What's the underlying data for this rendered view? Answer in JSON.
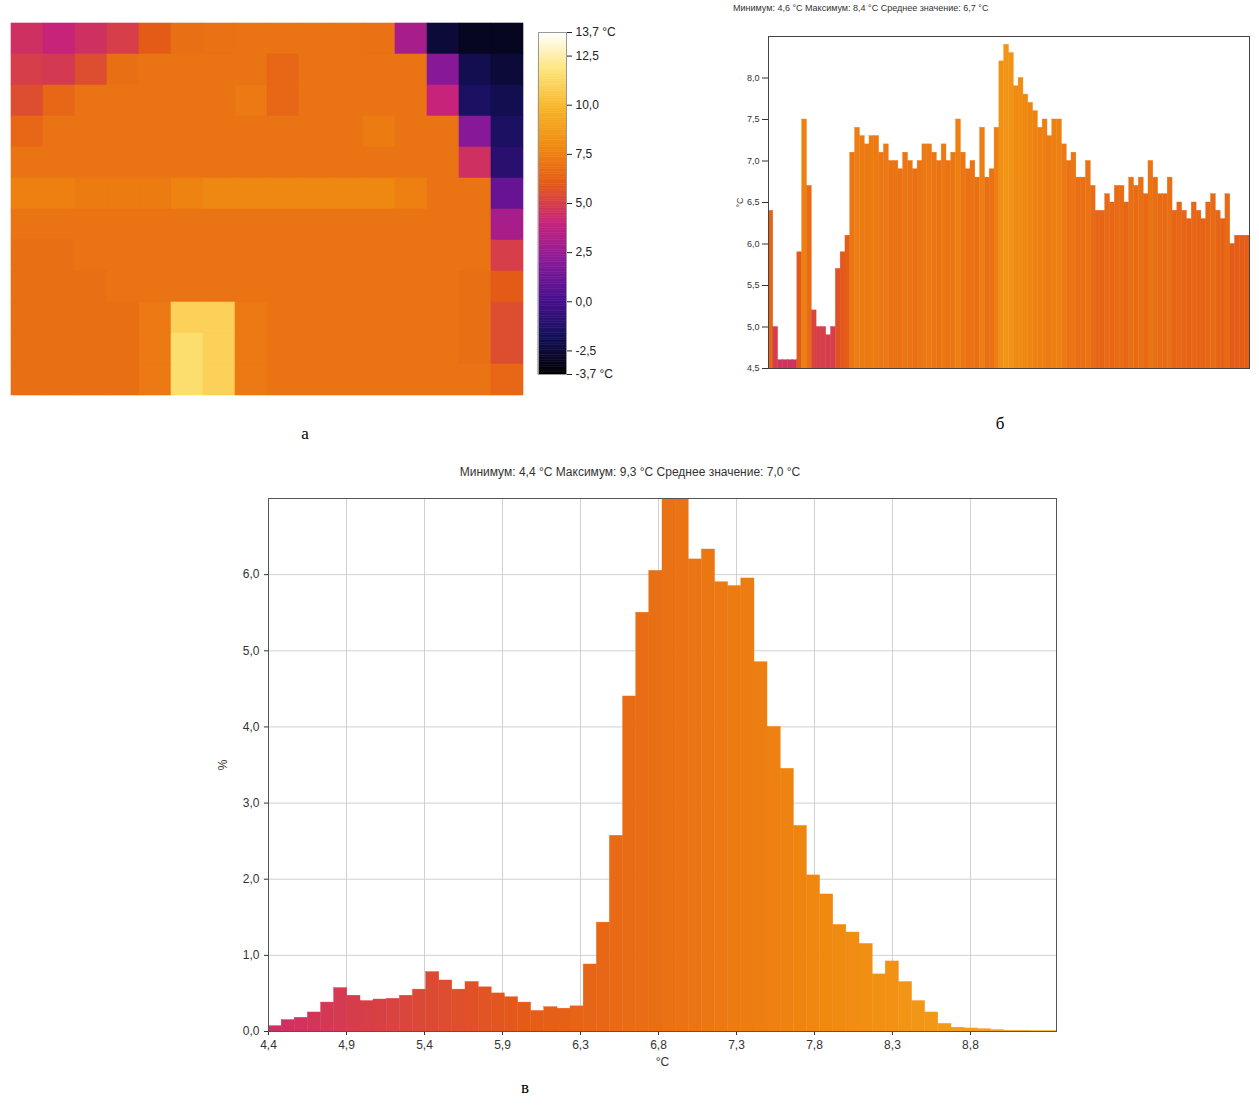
{
  "chart_data": [
    {
      "type": "heatmap",
      "caption": "а",
      "tick_labels": false,
      "cells": [
        [
          4.5,
          4,
          4.5,
          5,
          6,
          6.8,
          6.9,
          7,
          7,
          7,
          7,
          6.9,
          3,
          -2.5,
          -3,
          -3
        ],
        [
          5,
          4.8,
          5.5,
          6.8,
          7,
          7,
          7,
          7,
          6.5,
          7,
          7,
          7,
          7,
          2,
          -2,
          -2.5
        ],
        [
          5.5,
          6.5,
          7,
          7,
          7,
          7,
          7,
          7.2,
          6.5,
          7,
          7,
          7,
          7,
          4,
          -1.5,
          -2
        ],
        [
          6.5,
          7,
          7,
          7,
          7,
          7,
          7,
          7,
          7,
          7,
          7,
          7.3,
          7,
          7,
          2,
          -1.5
        ],
        [
          7,
          7,
          7,
          7,
          7,
          7,
          7,
          7,
          7,
          7,
          7,
          7,
          7,
          7,
          4.5,
          -1
        ],
        [
          7.5,
          7.5,
          7.3,
          7.3,
          7.3,
          7.6,
          7.8,
          7.8,
          7.8,
          7.8,
          7.8,
          7.8,
          7.5,
          7,
          7,
          1
        ],
        [
          7,
          7,
          7,
          7,
          7,
          7,
          7,
          7,
          7,
          7,
          7,
          7,
          7,
          7,
          7,
          3
        ],
        [
          6.8,
          6.8,
          7,
          7,
          7,
          7,
          7,
          7,
          7,
          7,
          7,
          7,
          7,
          7,
          7,
          5
        ],
        [
          6.8,
          6.8,
          6.8,
          7,
          7,
          7,
          7,
          7,
          7,
          7,
          7,
          7,
          7,
          7,
          6.8,
          6
        ],
        [
          6.8,
          6.8,
          6.8,
          6.8,
          7.2,
          11,
          11,
          7.2,
          7,
          7,
          7,
          7,
          7,
          7,
          6.8,
          5.5
        ],
        [
          6.8,
          6.8,
          6.8,
          6.8,
          7.2,
          11.5,
          11,
          7.2,
          7,
          7,
          7,
          7,
          7,
          7,
          6.8,
          5.5
        ],
        [
          6.8,
          6.8,
          6.8,
          6.8,
          7.2,
          11.5,
          11,
          7.2,
          7,
          7,
          7,
          7,
          7,
          7,
          7,
          6.5
        ]
      ],
      "colorbar": {
        "range": [
          -3.7,
          13.7
        ],
        "ticks": [
          {
            "value": -3.7,
            "label": "-3,7 °C"
          },
          {
            "value": -2.5,
            "label": "-2,5"
          },
          {
            "value": 0,
            "label": "0,0"
          },
          {
            "value": 2.5,
            "label": "2,5"
          },
          {
            "value": 5,
            "label": "5,0"
          },
          {
            "value": 7.5,
            "label": "7,5"
          },
          {
            "value": 10,
            "label": "10,0"
          },
          {
            "value": 12.5,
            "label": "12,5"
          },
          {
            "value": 13.7,
            "label": "13,7 °C"
          }
        ]
      }
    },
    {
      "type": "bar",
      "caption": "б",
      "title": "Минимум: 4,6 °C Максимум: 8,4 °C Среднее значение: 6,7 °C",
      "ylabel": "°C",
      "categories": [
        null,
        null,
        null,
        null,
        null,
        null,
        null,
        null,
        null,
        null,
        null,
        null,
        null,
        null,
        null,
        null,
        null,
        null,
        null,
        null,
        null,
        null,
        null,
        null,
        null,
        null,
        null,
        null,
        null,
        null,
        null,
        null,
        null,
        null,
        null,
        null,
        null,
        null,
        null,
        null,
        null,
        null,
        null,
        null,
        null,
        null,
        null,
        null,
        null,
        null,
        null,
        null,
        null,
        null,
        null,
        null,
        null,
        null,
        null,
        null,
        null,
        null,
        null,
        null,
        null,
        null,
        null,
        null,
        null,
        null,
        null,
        null,
        null,
        null,
        null,
        null,
        null,
        null,
        null,
        null,
        null,
        null,
        null,
        null,
        null,
        null,
        null,
        null,
        null,
        null,
        null,
        null,
        null,
        null,
        null,
        null,
        null,
        null,
        null,
        null
      ],
      "values": [
        6.4,
        5.0,
        4.6,
        4.6,
        4.6,
        4.6,
        5.9,
        7.5,
        6.7,
        5.2,
        5.0,
        5.0,
        4.9,
        5.0,
        5.7,
        5.9,
        6.1,
        7.1,
        7.4,
        7.3,
        7.2,
        7.3,
        7.3,
        7.1,
        7.2,
        7.0,
        7.0,
        6.9,
        7.1,
        7.0,
        6.9,
        7.0,
        7.2,
        7.2,
        7.1,
        7.0,
        7.2,
        7.0,
        7.1,
        7.5,
        7.1,
        6.9,
        7.0,
        6.8,
        7.4,
        6.8,
        6.9,
        7.4,
        8.2,
        8.4,
        8.3,
        7.9,
        8.0,
        7.8,
        7.7,
        7.6,
        7.4,
        7.5,
        7.3,
        7.5,
        7.5,
        7.2,
        7.0,
        7.1,
        6.8,
        6.8,
        7.0,
        6.7,
        6.4,
        6.4,
        6.6,
        6.5,
        6.7,
        6.7,
        6.5,
        6.8,
        6.7,
        6.8,
        6.6,
        7.0,
        6.8,
        6.6,
        6.6,
        6.8,
        6.4,
        6.5,
        6.4,
        6.3,
        6.5,
        6.4,
        6.3,
        6.5,
        6.6,
        6.4,
        6.3,
        6.6,
        6.0,
        6.1,
        6.1,
        6.1
      ],
      "ylim": [
        4.5,
        8.5
      ],
      "yticks": [
        {
          "value": 4.5,
          "label": "4,5"
        },
        {
          "value": 5,
          "label": "5,0"
        },
        {
          "value": 5.5,
          "label": "5,5"
        },
        {
          "value": 6,
          "label": "6,0"
        },
        {
          "value": 6.5,
          "label": "6,5"
        },
        {
          "value": 7,
          "label": "7,0"
        },
        {
          "value": 7.5,
          "label": "7,5"
        },
        {
          "value": 8,
          "label": "8,0"
        }
      ],
      "tick_labels": "y",
      "grid": false
    },
    {
      "type": "histogram",
      "caption": "в",
      "title": "Минимум: 4,4 °C Максимум: 9,3 °C Среднее значение: 7,0 °C",
      "xlabel": "°C",
      "ylabel": "%",
      "bins": [
        4.4,
        4.482,
        4.563,
        4.645,
        4.727,
        4.808,
        4.89,
        4.972,
        5.053,
        5.135,
        5.217,
        5.298,
        5.38,
        5.462,
        5.543,
        5.625,
        5.707,
        5.788,
        5.87,
        5.952,
        6.033,
        6.115,
        6.197,
        6.278,
        6.36,
        6.442,
        6.523,
        6.605,
        6.687,
        6.768,
        6.85,
        6.932,
        7.013,
        7.095,
        7.177,
        7.258,
        7.34,
        7.422,
        7.503,
        7.585,
        7.667,
        7.748,
        7.83,
        7.912,
        7.993,
        8.075,
        8.157,
        8.238,
        8.32,
        8.402,
        8.483,
        8.565,
        8.647,
        8.728,
        8.81,
        8.892,
        8.973,
        9.055,
        9.137,
        9.218,
        9.3
      ],
      "values": [
        0.07,
        0.15,
        0.18,
        0.25,
        0.38,
        0.57,
        0.47,
        0.4,
        0.42,
        0.43,
        0.47,
        0.55,
        0.78,
        0.67,
        0.55,
        0.65,
        0.58,
        0.5,
        0.45,
        0.38,
        0.27,
        0.32,
        0.3,
        0.33,
        0.88,
        1.43,
        2.57,
        4.4,
        5.5,
        6.05,
        7.0,
        7.0,
        6.2,
        6.33,
        5.9,
        5.85,
        5.95,
        4.85,
        4.0,
        3.45,
        2.7,
        2.05,
        1.8,
        1.4,
        1.3,
        1.15,
        0.75,
        0.92,
        0.65,
        0.4,
        0.25,
        0.1,
        0.05,
        0.04,
        0.03,
        0.02,
        0.01,
        0.01,
        0.005,
        0.005
      ],
      "xlim": [
        4.4,
        9.3
      ],
      "xticks": [
        {
          "value": 4.4,
          "label": "4,4"
        },
        {
          "value": 4.885,
          "label": "4,9"
        },
        {
          "value": 5.37,
          "label": "5,4"
        },
        {
          "value": 5.855,
          "label": "5,9"
        },
        {
          "value": 6.34,
          "label": "6,3"
        },
        {
          "value": 6.825,
          "label": "6,8"
        },
        {
          "value": 7.31,
          "label": "7,3"
        },
        {
          "value": 7.795,
          "label": "7,8"
        },
        {
          "value": 8.28,
          "label": "8,3"
        },
        {
          "value": 8.765,
          "label": "8,8"
        }
      ],
      "ylim": [
        0,
        7
      ],
      "yticks": [
        {
          "value": 0,
          "label": "0,0"
        },
        {
          "value": 1,
          "label": "1,0"
        },
        {
          "value": 2,
          "label": "2,0"
        },
        {
          "value": 3,
          "label": "3,0"
        },
        {
          "value": 4,
          "label": "4,0"
        },
        {
          "value": 5,
          "label": "5,0"
        },
        {
          "value": 6,
          "label": "6,0"
        }
      ],
      "grid": true
    }
  ]
}
